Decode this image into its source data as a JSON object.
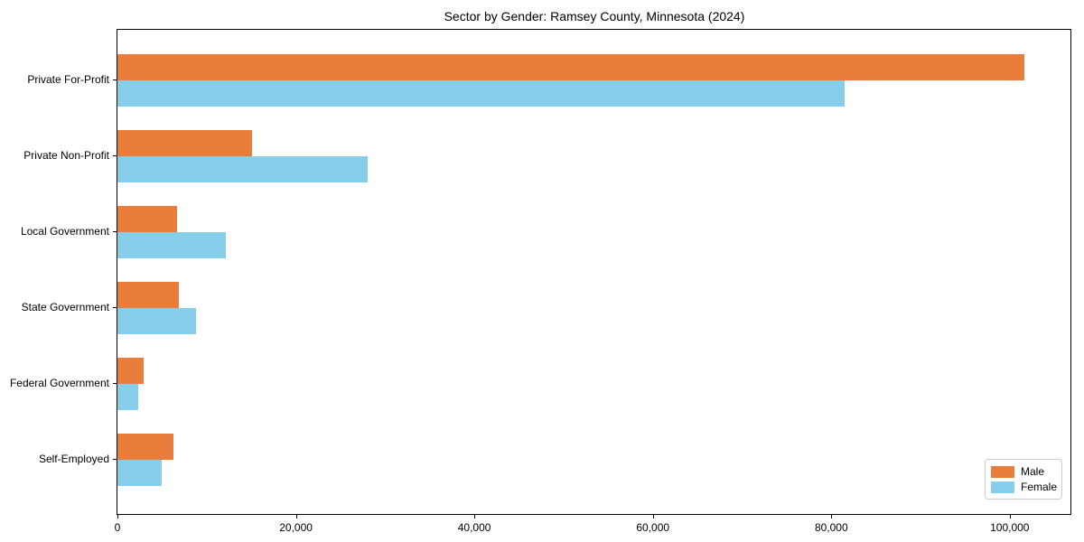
{
  "chart_data": {
    "type": "bar",
    "orientation": "horizontal",
    "title": "Sector by Gender: Ramsey County, Minnesota (2024)",
    "categories": [
      "Private For-Profit",
      "Private Non-Profit",
      "Local Government",
      "State Government",
      "Federal Government",
      "Self-Employed"
    ],
    "series": [
      {
        "name": "Male",
        "color": "#E87D3C",
        "values": [
          101600,
          15100,
          6700,
          6900,
          2900,
          6300
        ]
      },
      {
        "name": "Female",
        "color": "#87CEEB",
        "values": [
          81500,
          28000,
          12100,
          8800,
          2300,
          5000
        ]
      }
    ],
    "xlabel": "",
    "ylabel": "",
    "xlim": [
      0,
      106800
    ],
    "xticks": [
      0,
      20000,
      40000,
      60000,
      80000,
      100000
    ],
    "xtick_labels": [
      "0",
      "20,000",
      "40,000",
      "60,000",
      "80,000",
      "100,000"
    ],
    "grid": false,
    "legend": {
      "position": "lower right"
    },
    "colors": {
      "male": "#E87D3C",
      "female": "#87CEEB",
      "frame": "#000000",
      "legend_border": "#cccccc"
    }
  }
}
